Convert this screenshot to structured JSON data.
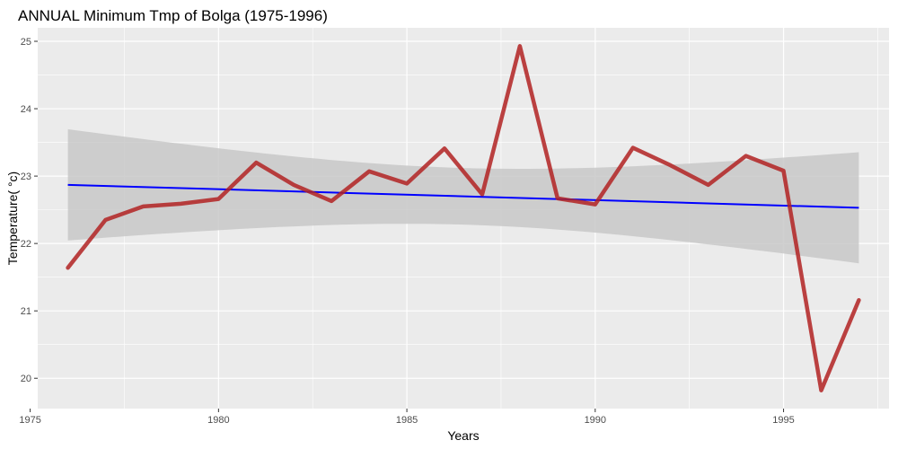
{
  "chart_data": {
    "type": "line",
    "title": "ANNUAL Minimum Tmp of Bolga (1975-1996)",
    "xlabel": "Years",
    "ylabel": "Temperature( °c)",
    "xlim": [
      1975.2,
      1997.8
    ],
    "ylim": [
      19.55,
      25.2
    ],
    "x_ticks": [
      1975,
      1980,
      1985,
      1990,
      1995
    ],
    "y_ticks": [
      20,
      21,
      22,
      23,
      24,
      25
    ],
    "grid": true,
    "colors": {
      "panel": "#ebebeb",
      "grid": "#ffffff",
      "series": "#b22222",
      "trend": "#0000ff",
      "band": "#c8c8c8"
    },
    "series": [
      {
        "x": [
          1976,
          1977,
          1978,
          1979,
          1980,
          1981,
          1982,
          1983,
          1984,
          1985,
          1986,
          1987,
          1988,
          1989,
          1990,
          1991,
          1992,
          1993,
          1994,
          1995,
          1996,
          1997
        ],
        "values": [
          21.64,
          22.35,
          22.55,
          22.59,
          22.66,
          23.2,
          22.87,
          22.63,
          23.07,
          22.89,
          23.41,
          22.73,
          24.93,
          22.67,
          22.58,
          23.42,
          23.16,
          22.87,
          23.3,
          23.08,
          19.82,
          21.16
        ]
      }
    ],
    "trend": {
      "x": [
        1976,
        1997
      ],
      "values": [
        22.87,
        22.53
      ],
      "ci_lower": [
        22.05,
        21.72
      ],
      "ci_upper": [
        23.7,
        23.38
      ]
    }
  }
}
